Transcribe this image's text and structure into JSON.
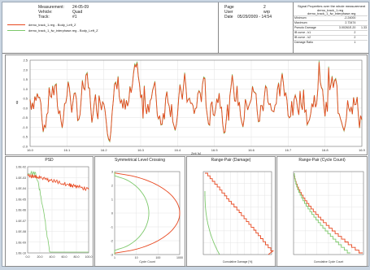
{
  "header": {
    "measurement_label": "Measurement:",
    "measurement_value": "24-05-09",
    "vehicle_label": "Vehicle:",
    "vehicle_value": "Quad",
    "track_label": "Track:",
    "track_value": "#1",
    "legend": [
      {
        "label": "demo_track_1.reg - Body_Left_Z",
        "color": "#e8471f"
      },
      {
        "label": "demo_track_1_fw_interphase.reg - Body_Left_Z",
        "color": "#7cc86a"
      }
    ],
    "page_label": "Page",
    "page_value": "2",
    "user_label": "User",
    "user_value": "wrp",
    "date_label": "Date",
    "date_value": "05/29/2009 - 14:54"
  },
  "signal_properties": {
    "title": "Signal Properties over the whole measurement",
    "file1": "demo_track_1.reg",
    "file2": "demo_track_1_fw_interphase.reg",
    "rows": [
      {
        "label": "Minimum",
        "v1": "-2.24000",
        "v2": ""
      },
      {
        "label": "Maximum",
        "v1": "2.73474",
        "v2": ""
      },
      {
        "label": "Pseudo Damage",
        "v1": "3.00261E-20",
        "v2": "1.33"
      },
      {
        "label": "IB curve - k1",
        "v1": "2",
        "v2": ""
      },
      {
        "label": "IB curve - k2",
        "v1": "2",
        "v2": ""
      },
      {
        "label": "Damage Ratio",
        "v1": "1",
        "v2": ""
      }
    ]
  },
  "time_plot": {
    "ylabel": "g",
    "xlabel": "Zeit [s]",
    "yticks": [
      "2.5",
      "2.0",
      "1.5",
      "1.0",
      "0.5",
      "0.0",
      "-0.5",
      "-1.0",
      "-1.5",
      "-2.0"
    ],
    "xticks": [
      "16.0",
      "16.1",
      "16.2",
      "16.3",
      "16.4",
      "16.5",
      "16.6",
      "16.7",
      "16.8",
      "16.9"
    ],
    "series_colors": [
      "#e8471f",
      "#7cc86a"
    ]
  },
  "panels": {
    "psd": {
      "title": "PSD",
      "yticks": [
        "1.0E-02",
        "1.0E-03",
        "1.0E-04",
        "1.0E-05",
        "1.0E-06",
        "1.0E-07",
        "1.0E-08",
        "1.0E-09",
        "1.0E-10"
      ],
      "xticks": [
        "0.0",
        "20.0",
        "40.0",
        "60.0",
        "80.0",
        "100.0"
      ]
    },
    "level_crossing": {
      "title": "Symmetrical Level Crossing",
      "yticks": [
        "3",
        "2",
        "1",
        "0",
        "-1",
        "-2",
        "-3"
      ],
      "xticks": [
        "1",
        "10",
        "100",
        "1000"
      ],
      "xlabel": "Cycle Count"
    },
    "range_pair_damage": {
      "title": "Range-Pair (Damage)",
      "xlabel": "Cumulative Damage [%]"
    },
    "range_pair_count": {
      "title": "Range-Pair (Cycle Count)",
      "xlabel": "Cumulative Cycle Count"
    }
  }
}
